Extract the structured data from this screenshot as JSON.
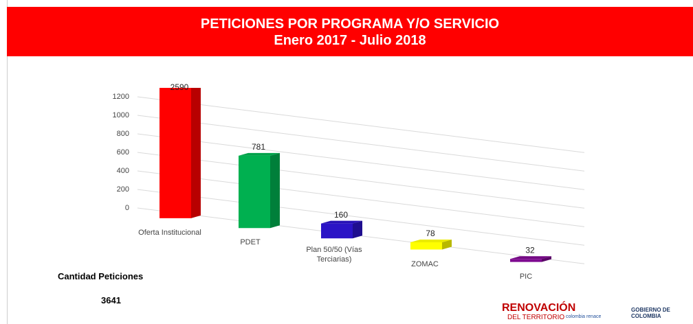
{
  "chart_data": {
    "type": "bar3d",
    "title": "PETICIONES POR PROGRAMA Y/O SERVICIO",
    "subtitle": "Enero 2017 - Julio 2018",
    "categories": [
      "Oferta Institucional",
      "PDET",
      "Plan 50/50 (Vías Terciarias)",
      "ZOMAC",
      "PIC"
    ],
    "values": [
      2590,
      781,
      160,
      78,
      32
    ],
    "colors": [
      "#ff0000",
      "#00b050",
      "#2b14c6",
      "#ffff00",
      "#7e0a90"
    ],
    "ylim": [
      0,
      1200
    ],
    "yticks": [
      0,
      200,
      400,
      600,
      800,
      1000,
      1200
    ],
    "grid": true
  },
  "summary": {
    "label": "Cantidad Peticiones",
    "value": 3641
  },
  "logos": [
    "RENOVACIÓN",
    "DEL TERRITORIO",
    "colombia renace",
    "GOBIERNO DE COLOMBIA"
  ]
}
